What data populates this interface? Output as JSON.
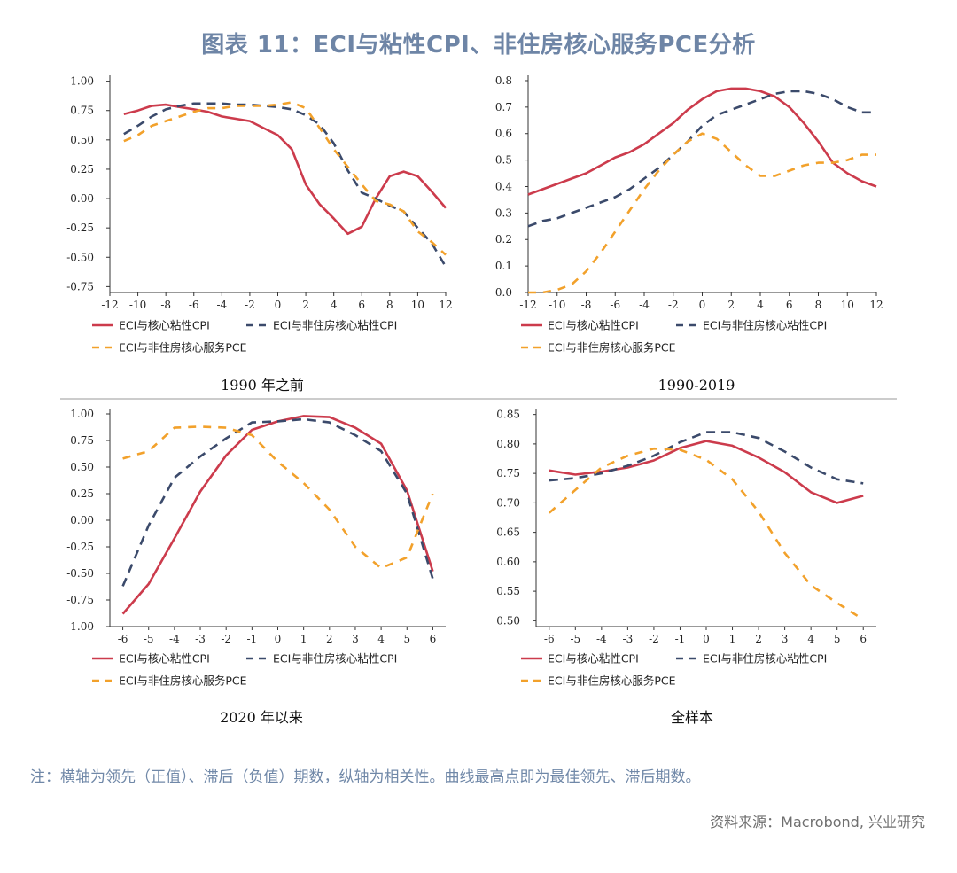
{
  "title": "图表 11：ECI与粘性CPI、非住房核心服务PCE分析",
  "note": "注：横轴为领先（正值）、滞后（负值）期数，纵轴为相关性。曲线最高点即为最佳领先、滞后期数。",
  "source": "资料来源：Macrobond, 兴业研究",
  "colors": {
    "series1": "#cc3b4c",
    "series2": "#3b4a6b",
    "series3": "#f2a12b"
  },
  "chart_data": [
    {
      "type": "line",
      "caption": "1990 年之前",
      "xlim": [
        -12,
        12
      ],
      "xticks": [
        -12,
        -10,
        -8,
        -6,
        -4,
        -2,
        0,
        2,
        4,
        6,
        8,
        10,
        12
      ],
      "ylim": [
        -0.8,
        1.05
      ],
      "yticks": [
        "1.00",
        "0.75",
        "0.50",
        "0.25",
        "0.00",
        "-0.25",
        "-0.50",
        "-0.75"
      ],
      "x": [
        -11,
        -10,
        -9,
        -8,
        -7,
        -6,
        -5,
        -4,
        -3,
        -2,
        -1,
        0,
        1,
        2,
        3,
        4,
        5,
        6,
        7,
        8,
        9,
        10,
        11,
        12
      ],
      "series": [
        {
          "name": "ECI与核心粘性CPI",
          "values": [
            0.72,
            0.75,
            0.79,
            0.8,
            0.78,
            0.76,
            0.74,
            0.7,
            0.68,
            0.66,
            0.6,
            0.54,
            0.42,
            0.12,
            -0.05,
            -0.17,
            -0.3,
            -0.24,
            0.0,
            0.19,
            0.23,
            0.19,
            0.06,
            -0.08
          ]
        },
        {
          "name": "ECI与非住房核心粘性CPI",
          "values": [
            0.55,
            0.62,
            0.7,
            0.76,
            0.79,
            0.81,
            0.81,
            0.81,
            0.8,
            0.8,
            0.79,
            0.78,
            0.76,
            0.71,
            0.63,
            0.47,
            0.24,
            0.05,
            0.0,
            -0.06,
            -0.11,
            -0.25,
            -0.38,
            -0.58
          ]
        },
        {
          "name": "ECI与非住房核心服务PCE",
          "values": [
            0.49,
            0.54,
            0.62,
            0.66,
            0.7,
            0.74,
            0.77,
            0.77,
            0.79,
            0.79,
            0.79,
            0.8,
            0.82,
            0.77,
            0.6,
            0.42,
            0.27,
            0.12,
            -0.02,
            -0.05,
            -0.11,
            -0.28,
            -0.37,
            -0.48
          ]
        }
      ]
    },
    {
      "type": "line",
      "caption": "1990-2019",
      "xlim": [
        -12,
        12
      ],
      "xticks": [
        -12,
        -10,
        -8,
        -6,
        -4,
        -2,
        0,
        2,
        4,
        6,
        8,
        10,
        12
      ],
      "ylim": [
        0,
        0.82
      ],
      "yticks": [
        "0.8",
        "0.7",
        "0.6",
        "0.5",
        "0.4",
        "0.3",
        "0.2",
        "0.1",
        "0.0"
      ],
      "x": [
        -12,
        -11,
        -10,
        -9,
        -8,
        -7,
        -6,
        -5,
        -4,
        -3,
        -2,
        -1,
        0,
        1,
        2,
        3,
        4,
        5,
        6,
        7,
        8,
        9,
        10,
        11,
        12
      ],
      "series": [
        {
          "name": "ECI与核心粘性CPI",
          "values": [
            0.37,
            0.39,
            0.41,
            0.43,
            0.45,
            0.48,
            0.51,
            0.53,
            0.56,
            0.6,
            0.64,
            0.69,
            0.73,
            0.76,
            0.77,
            0.77,
            0.76,
            0.74,
            0.7,
            0.64,
            0.57,
            0.49,
            0.45,
            0.42,
            0.4
          ]
        },
        {
          "name": "ECI与非住房核心粘性CPI",
          "values": [
            0.25,
            0.27,
            0.28,
            0.3,
            0.32,
            0.34,
            0.36,
            0.39,
            0.43,
            0.47,
            0.52,
            0.57,
            0.63,
            0.67,
            0.69,
            0.71,
            0.73,
            0.75,
            0.76,
            0.76,
            0.75,
            0.73,
            0.7,
            0.68,
            0.68
          ]
        },
        {
          "name": "ECI与非住房核心服务PCE",
          "values": [
            0.0,
            0.0,
            0.01,
            0.03,
            0.08,
            0.15,
            0.23,
            0.31,
            0.39,
            0.46,
            0.52,
            0.57,
            0.6,
            0.58,
            0.53,
            0.48,
            0.44,
            0.44,
            0.46,
            0.48,
            0.49,
            0.49,
            0.5,
            0.52,
            0.52
          ]
        }
      ]
    },
    {
      "type": "line",
      "caption": "2020 年以来",
      "xlim": [
        -6.5,
        6.5
      ],
      "xticks": [
        -6,
        -5,
        -4,
        -3,
        -2,
        -1,
        0,
        1,
        2,
        3,
        4,
        5,
        6
      ],
      "ylim": [
        -1.0,
        1.05
      ],
      "yticks": [
        "1.00",
        "0.75",
        "0.50",
        "0.25",
        "0.00",
        "-0.25",
        "-0.50",
        "-0.75",
        "-1.00"
      ],
      "x": [
        -6,
        -5,
        -4,
        -3,
        -2,
        -1,
        0,
        1,
        2,
        3,
        4,
        5,
        6
      ],
      "series": [
        {
          "name": "ECI与核心粘性CPI",
          "values": [
            -0.88,
            -0.6,
            -0.17,
            0.27,
            0.61,
            0.85,
            0.93,
            0.98,
            0.97,
            0.87,
            0.72,
            0.28,
            -0.48
          ]
        },
        {
          "name": "ECI与非住房核心粘性CPI",
          "values": [
            -0.62,
            -0.05,
            0.4,
            0.6,
            0.77,
            0.92,
            0.93,
            0.95,
            0.92,
            0.8,
            0.65,
            0.25,
            -0.55
          ]
        },
        {
          "name": "ECI与非住房核心服务PCE",
          "values": [
            0.58,
            0.65,
            0.87,
            0.88,
            0.87,
            0.8,
            0.55,
            0.35,
            0.1,
            -0.25,
            -0.45,
            -0.35,
            0.25
          ]
        }
      ]
    },
    {
      "type": "line",
      "caption": "全样本",
      "xlim": [
        -6.5,
        6.5
      ],
      "xticks": [
        -6,
        -5,
        -4,
        -3,
        -2,
        -1,
        0,
        1,
        2,
        3,
        4,
        5,
        6
      ],
      "ylim": [
        0.49,
        0.86
      ],
      "yticks": [
        "0.85",
        "0.80",
        "0.75",
        "0.70",
        "0.65",
        "0.60",
        "0.55",
        "0.50"
      ],
      "x": [
        -6,
        -5,
        -4,
        -3,
        -2,
        -1,
        0,
        1,
        2,
        3,
        4,
        5,
        6
      ],
      "series": [
        {
          "name": "ECI与核心粘性CPI",
          "values": [
            0.755,
            0.748,
            0.753,
            0.76,
            0.772,
            0.793,
            0.805,
            0.797,
            0.777,
            0.752,
            0.718,
            0.7,
            0.712
          ]
        },
        {
          "name": "ECI与非住房核心粘性CPI",
          "values": [
            0.738,
            0.742,
            0.75,
            0.763,
            0.78,
            0.803,
            0.82,
            0.82,
            0.81,
            0.787,
            0.76,
            0.74,
            0.733
          ]
        },
        {
          "name": "ECI与非住房核心服务PCE",
          "values": [
            0.683,
            0.722,
            0.76,
            0.78,
            0.792,
            0.79,
            0.773,
            0.74,
            0.685,
            0.615,
            0.56,
            0.53,
            0.502
          ]
        }
      ]
    }
  ]
}
